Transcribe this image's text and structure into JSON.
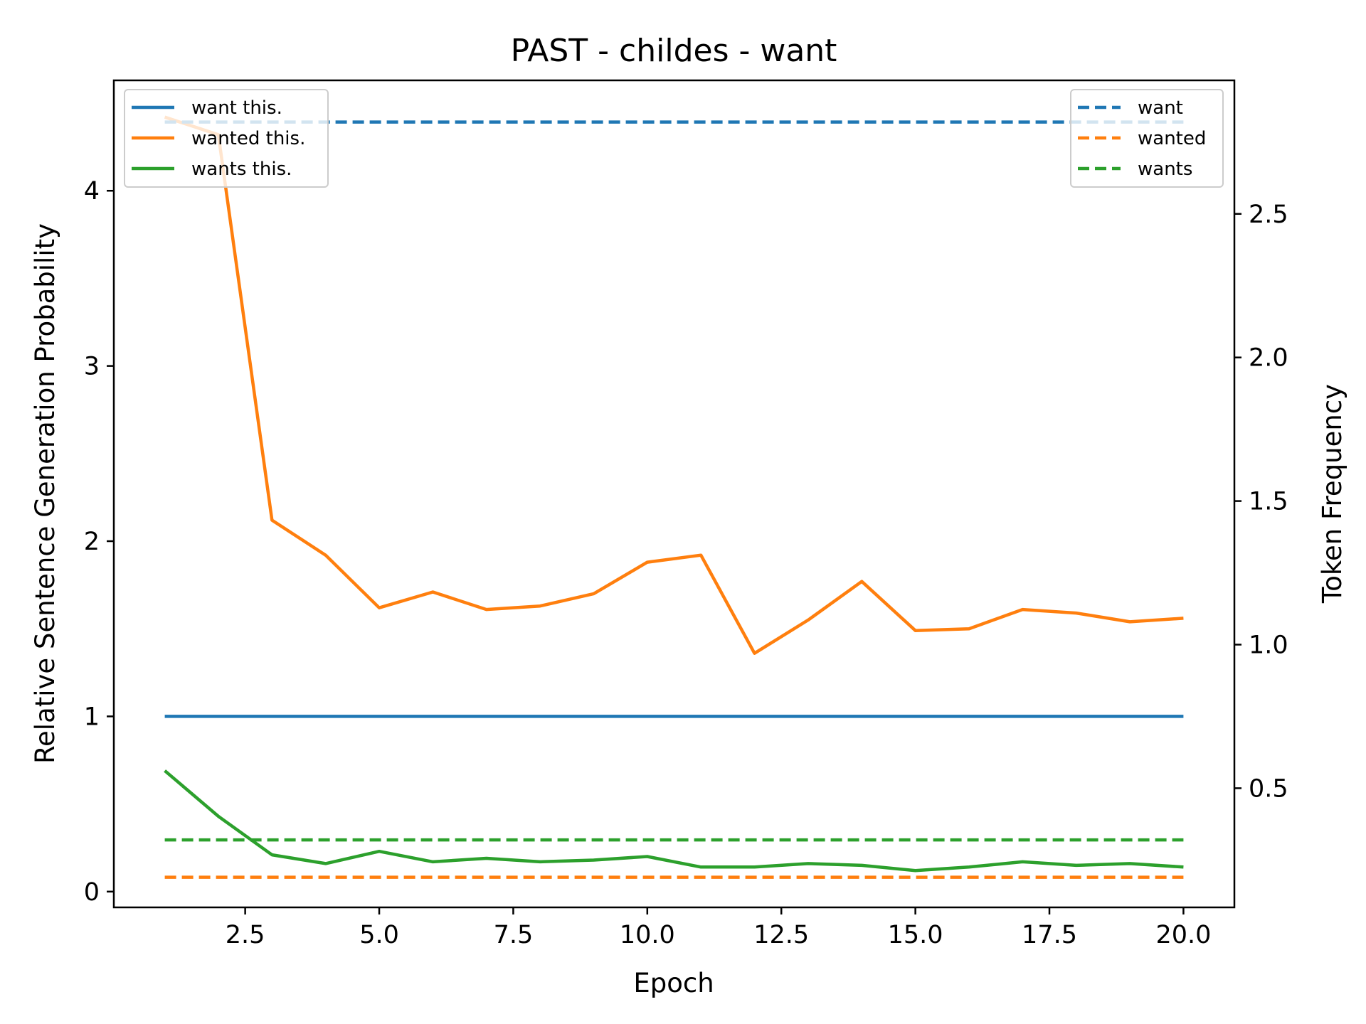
{
  "chart_data": {
    "type": "line",
    "title": "PAST - childes - want",
    "xlabel": "Epoch",
    "ylabel": "Relative Sentence Generation Probability",
    "ylabel_right": "Token Frequency",
    "xlim": [
      0.05,
      20.95
    ],
    "ylim": [
      -0.09,
      4.63
    ],
    "ylim_right": [
      0.085,
      2.965
    ],
    "x_ticks": [
      2.5,
      5.0,
      7.5,
      10.0,
      12.5,
      15.0,
      17.5,
      20.0
    ],
    "x_tick_labels": [
      "2.5",
      "5.0",
      "7.5",
      "10.0",
      "12.5",
      "15.0",
      "17.5",
      "20.0"
    ],
    "y_ticks": [
      0,
      1,
      2,
      3,
      4
    ],
    "y_tick_labels": [
      "0",
      "1",
      "2",
      "3",
      "4"
    ],
    "y_ticks_right": [
      0.5,
      1.0,
      1.5,
      2.0,
      2.5
    ],
    "y_tick_labels_right": [
      "0.5",
      "1.0",
      "1.5",
      "2.0",
      "2.5"
    ],
    "x": [
      1,
      2,
      3,
      4,
      5,
      6,
      7,
      8,
      9,
      10,
      11,
      12,
      13,
      14,
      15,
      16,
      17,
      18,
      19,
      20
    ],
    "series": [
      {
        "name": "want this.",
        "axis": "left",
        "style": "solid",
        "color": "#1f77b4",
        "values": [
          1,
          1,
          1,
          1,
          1,
          1,
          1,
          1,
          1,
          1,
          1,
          1,
          1,
          1,
          1,
          1,
          1,
          1,
          1,
          1
        ]
      },
      {
        "name": "wanted this.",
        "axis": "left",
        "style": "solid",
        "color": "#ff7f0e",
        "values": [
          4.42,
          4.32,
          2.12,
          1.92,
          1.62,
          1.71,
          1.61,
          1.63,
          1.7,
          1.88,
          1.92,
          1.36,
          1.55,
          1.77,
          1.49,
          1.5,
          1.61,
          1.59,
          1.54,
          1.56
        ]
      },
      {
        "name": "wants this.",
        "axis": "left",
        "style": "solid",
        "color": "#2ca02c",
        "values": [
          0.69,
          0.43,
          0.21,
          0.16,
          0.23,
          0.17,
          0.19,
          0.17,
          0.18,
          0.2,
          0.14,
          0.14,
          0.16,
          0.15,
          0.12,
          0.14,
          0.17,
          0.15,
          0.16,
          0.14
        ]
      },
      {
        "name": "want",
        "axis": "right",
        "style": "dashed",
        "color": "#1f77b4",
        "values": [
          2.82,
          2.82,
          2.82,
          2.82,
          2.82,
          2.82,
          2.82,
          2.82,
          2.82,
          2.82,
          2.82,
          2.82,
          2.82,
          2.82,
          2.82,
          2.82,
          2.82,
          2.82,
          2.82,
          2.82
        ]
      },
      {
        "name": "wanted",
        "axis": "right",
        "style": "dashed",
        "color": "#ff7f0e",
        "values": [
          0.19,
          0.19,
          0.19,
          0.19,
          0.19,
          0.19,
          0.19,
          0.19,
          0.19,
          0.19,
          0.19,
          0.19,
          0.19,
          0.19,
          0.19,
          0.19,
          0.19,
          0.19,
          0.19,
          0.19
        ]
      },
      {
        "name": "wants",
        "axis": "right",
        "style": "dashed",
        "color": "#2ca02c",
        "values": [
          0.32,
          0.32,
          0.32,
          0.32,
          0.32,
          0.32,
          0.32,
          0.32,
          0.32,
          0.32,
          0.32,
          0.32,
          0.32,
          0.32,
          0.32,
          0.32,
          0.32,
          0.32,
          0.32,
          0.32
        ]
      }
    ],
    "legend_left": {
      "placement": "upper-left",
      "entries": [
        "want this.",
        "wanted this.",
        "wants this."
      ]
    },
    "legend_right": {
      "placement": "upper-right",
      "entries": [
        "want",
        "wanted",
        "wants"
      ]
    },
    "grid": false
  }
}
